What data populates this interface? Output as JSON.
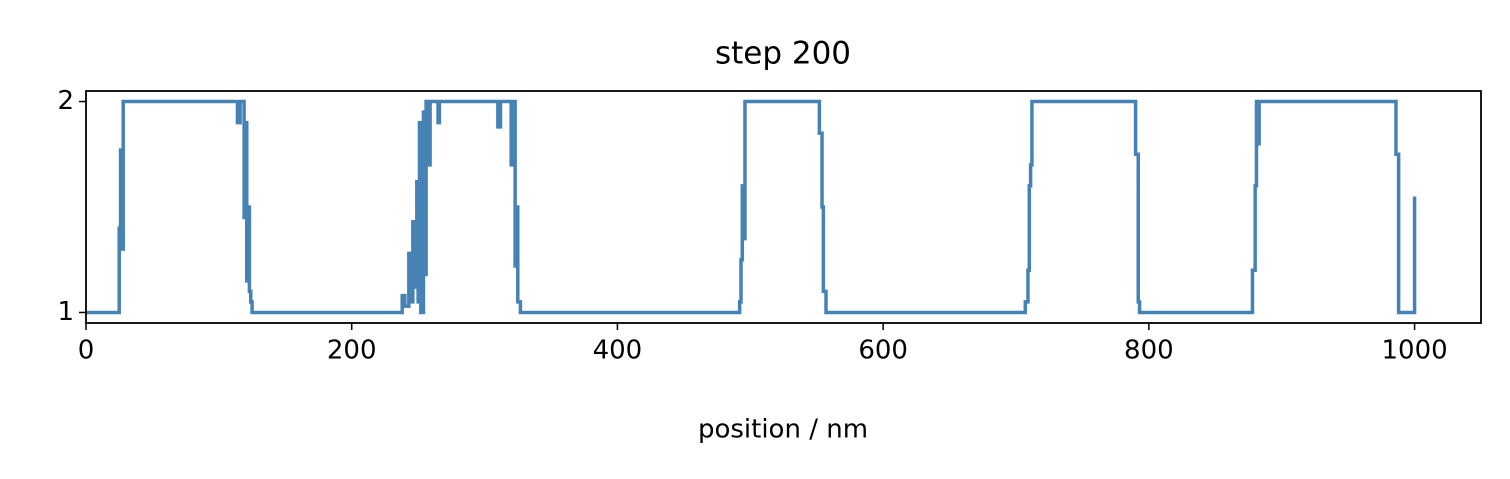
{
  "chart_data": {
    "type": "line",
    "title": "step 200",
    "xlabel": "position / nm",
    "xlim": [
      0,
      1050
    ],
    "ylim": [
      0.95,
      2.05
    ],
    "xticks": [
      0,
      200,
      400,
      600,
      800,
      1000
    ],
    "yticks": [
      1,
      2
    ],
    "series": [
      {
        "color": "#4682b4",
        "x": [
          0,
          25,
          25,
          26,
          26,
          27,
          27,
          28,
          28,
          114,
          114,
          116,
          116,
          119,
          119,
          120,
          120,
          121,
          121,
          122,
          122,
          123,
          123,
          124,
          124,
          125,
          125,
          238,
          238,
          240,
          240,
          243,
          243,
          244,
          244,
          246,
          246,
          247,
          247,
          249,
          249,
          250,
          250,
          251,
          251,
          252,
          252,
          254,
          254,
          255,
          255,
          256,
          256,
          258,
          258,
          259,
          259,
          265,
          265,
          266,
          266,
          310,
          310,
          312,
          312,
          320,
          320,
          321,
          321,
          323,
          323,
          324,
          324,
          325,
          325,
          327,
          327,
          492,
          492,
          493,
          493,
          494,
          494,
          495,
          495,
          496,
          496,
          552,
          552,
          554,
          554,
          555,
          555,
          557,
          557,
          707,
          707,
          709,
          709,
          710,
          710,
          711,
          711,
          712,
          712,
          790,
          790,
          792,
          792,
          793,
          793,
          878,
          878,
          880,
          880,
          881,
          881,
          882,
          882,
          883,
          883,
          986,
          986,
          988,
          988,
          1000,
          1000
        ],
        "values": [
          1,
          1,
          1.4,
          1.4,
          1.77,
          1.77,
          1.3,
          1.3,
          2,
          2,
          1.9,
          1.9,
          2,
          2,
          1.45,
          1.45,
          1.9,
          1.9,
          1.15,
          1.15,
          1.5,
          1.5,
          1.1,
          1.1,
          1.05,
          1.05,
          1,
          1,
          1.08,
          1.08,
          1.03,
          1.03,
          1.28,
          1.28,
          1.05,
          1.05,
          1.43,
          1.43,
          1.12,
          1.12,
          1.62,
          1.62,
          1.05,
          1.05,
          1.9,
          1.9,
          1,
          1,
          1.95,
          1.95,
          1.18,
          1.18,
          2,
          2,
          1.7,
          1.7,
          2,
          2,
          1.9,
          1.9,
          2,
          2,
          1.88,
          1.88,
          2,
          2,
          1.7,
          1.7,
          2,
          2,
          1.22,
          1.22,
          1.5,
          1.5,
          1.05,
          1.05,
          1,
          1,
          1.05,
          1.05,
          1.25,
          1.25,
          1.6,
          1.6,
          1.35,
          1.35,
          2,
          2,
          1.85,
          1.85,
          1.5,
          1.5,
          1.1,
          1.1,
          1,
          1,
          1.05,
          1.05,
          1.2,
          1.2,
          1.6,
          1.6,
          1.7,
          1.7,
          2,
          2,
          1.75,
          1.75,
          1.05,
          1.05,
          1,
          1,
          1.2,
          1.2,
          1.6,
          1.6,
          2,
          2,
          1.8,
          1.8,
          2,
          2,
          1.75,
          1.75,
          1,
          1,
          1.55
        ]
      }
    ]
  }
}
